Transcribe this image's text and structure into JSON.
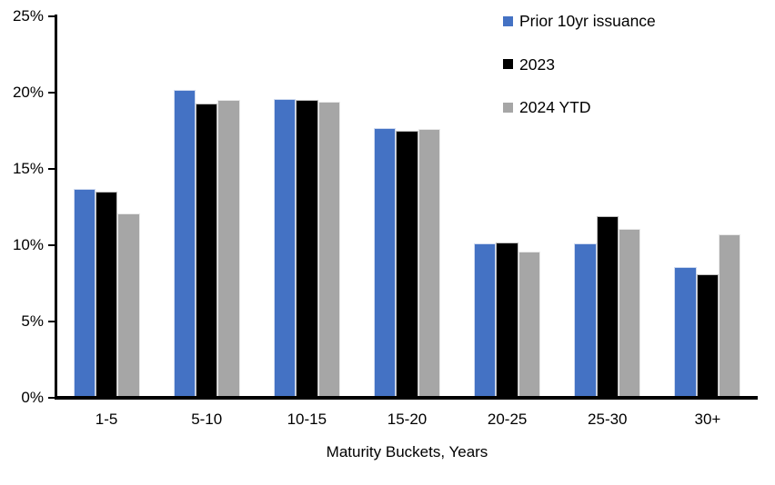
{
  "chart_data": {
    "type": "bar",
    "title": "",
    "xlabel": "Maturity Buckets, Years",
    "ylabel": "",
    "categories": [
      "1-5",
      "5-10",
      "10-15",
      "15-20",
      "20-25",
      "25-30",
      "30+"
    ],
    "series": [
      {
        "name": "Prior 10yr issuance",
        "color": "#4472C4",
        "values": [
          13.7,
          20.2,
          19.6,
          17.7,
          10.1,
          10.1,
          8.6
        ]
      },
      {
        "name": "2023",
        "color": "#000000",
        "values": [
          13.5,
          19.3,
          19.5,
          17.5,
          10.2,
          11.9,
          8.1
        ]
      },
      {
        "name": "2024 YTD",
        "color": "#A6A6A6",
        "values": [
          12.1,
          19.5,
          19.4,
          17.6,
          9.6,
          11.1,
          10.7
        ]
      }
    ],
    "ylim": [
      0,
      25
    ],
    "yticks": [
      0,
      5,
      10,
      15,
      20,
      25
    ],
    "ytick_labels": [
      "0%",
      "5%",
      "10%",
      "15%",
      "20%",
      "25%"
    ],
    "grid": false,
    "legend_position": "top-right",
    "axis_color": "#000000",
    "background_color": "#ffffff"
  }
}
